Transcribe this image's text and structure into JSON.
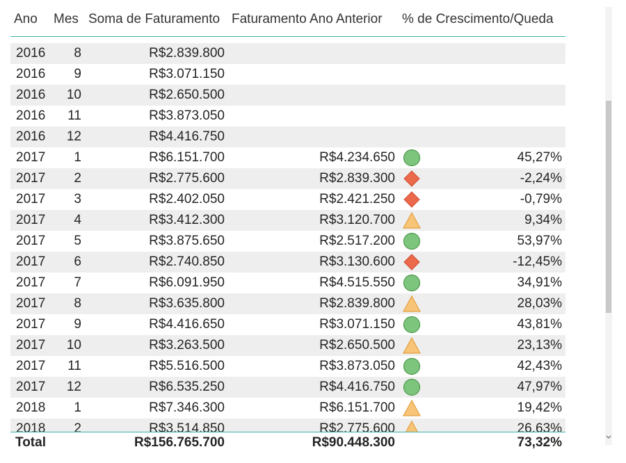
{
  "table": {
    "columns": [
      "Ano",
      "Mes",
      "Soma de Faturamento",
      "Faturamento Ano Anterior",
      "% de Crescimento/Queda"
    ],
    "rows": [
      {
        "ano": "2016",
        "mes": "8",
        "soma": "R$2.839.800",
        "anterior": null,
        "crescimento": null,
        "icon": null
      },
      {
        "ano": "2016",
        "mes": "9",
        "soma": "R$3.071.150",
        "anterior": null,
        "crescimento": null,
        "icon": null
      },
      {
        "ano": "2016",
        "mes": "10",
        "soma": "R$2.650.500",
        "anterior": null,
        "crescimento": null,
        "icon": null
      },
      {
        "ano": "2016",
        "mes": "11",
        "soma": "R$3.873.050",
        "anterior": null,
        "crescimento": null,
        "icon": null
      },
      {
        "ano": "2016",
        "mes": "12",
        "soma": "R$4.416.750",
        "anterior": null,
        "crescimento": null,
        "icon": null
      },
      {
        "ano": "2017",
        "mes": "1",
        "soma": "R$6.151.700",
        "anterior": "R$4.234.650",
        "crescimento": "45,27%",
        "icon": "circle"
      },
      {
        "ano": "2017",
        "mes": "2",
        "soma": "R$2.775.600",
        "anterior": "R$2.839.300",
        "crescimento": "-2,24%",
        "icon": "diamond"
      },
      {
        "ano": "2017",
        "mes": "3",
        "soma": "R$2.402.050",
        "anterior": "R$2.421.250",
        "crescimento": "-0,79%",
        "icon": "diamond"
      },
      {
        "ano": "2017",
        "mes": "4",
        "soma": "R$3.412.300",
        "anterior": "R$3.120.700",
        "crescimento": "9,34%",
        "icon": "triangle"
      },
      {
        "ano": "2017",
        "mes": "5",
        "soma": "R$3.875.650",
        "anterior": "R$2.517.200",
        "crescimento": "53,97%",
        "icon": "circle"
      },
      {
        "ano": "2017",
        "mes": "6",
        "soma": "R$2.740.850",
        "anterior": "R$3.130.600",
        "crescimento": "-12,45%",
        "icon": "diamond"
      },
      {
        "ano": "2017",
        "mes": "7",
        "soma": "R$6.091.950",
        "anterior": "R$4.515.550",
        "crescimento": "34,91%",
        "icon": "circle"
      },
      {
        "ano": "2017",
        "mes": "8",
        "soma": "R$3.635.800",
        "anterior": "R$2.839.800",
        "crescimento": "28,03%",
        "icon": "triangle"
      },
      {
        "ano": "2017",
        "mes": "9",
        "soma": "R$4.416.650",
        "anterior": "R$3.071.150",
        "crescimento": "43,81%",
        "icon": "circle"
      },
      {
        "ano": "2017",
        "mes": "10",
        "soma": "R$3.263.500",
        "anterior": "R$2.650.500",
        "crescimento": "23,13%",
        "icon": "triangle"
      },
      {
        "ano": "2017",
        "mes": "11",
        "soma": "R$5.516.500",
        "anterior": "R$3.873.050",
        "crescimento": "42,43%",
        "icon": "circle"
      },
      {
        "ano": "2017",
        "mes": "12",
        "soma": "R$6.535.250",
        "anterior": "R$4.416.750",
        "crescimento": "47,97%",
        "icon": "circle"
      },
      {
        "ano": "2018",
        "mes": "1",
        "soma": "R$7.346.300",
        "anterior": "R$6.151.700",
        "crescimento": "19,42%",
        "icon": "triangle"
      },
      {
        "ano": "2018",
        "mes": "2",
        "soma": "R$3.514.850",
        "anterior": "R$2.775.600",
        "crescimento": "26,63%",
        "icon": "triangle"
      }
    ],
    "total": {
      "label": "Total",
      "soma": "R$156.765.700",
      "anterior": "R$90.448.300",
      "crescimento": "73,32%"
    }
  }
}
